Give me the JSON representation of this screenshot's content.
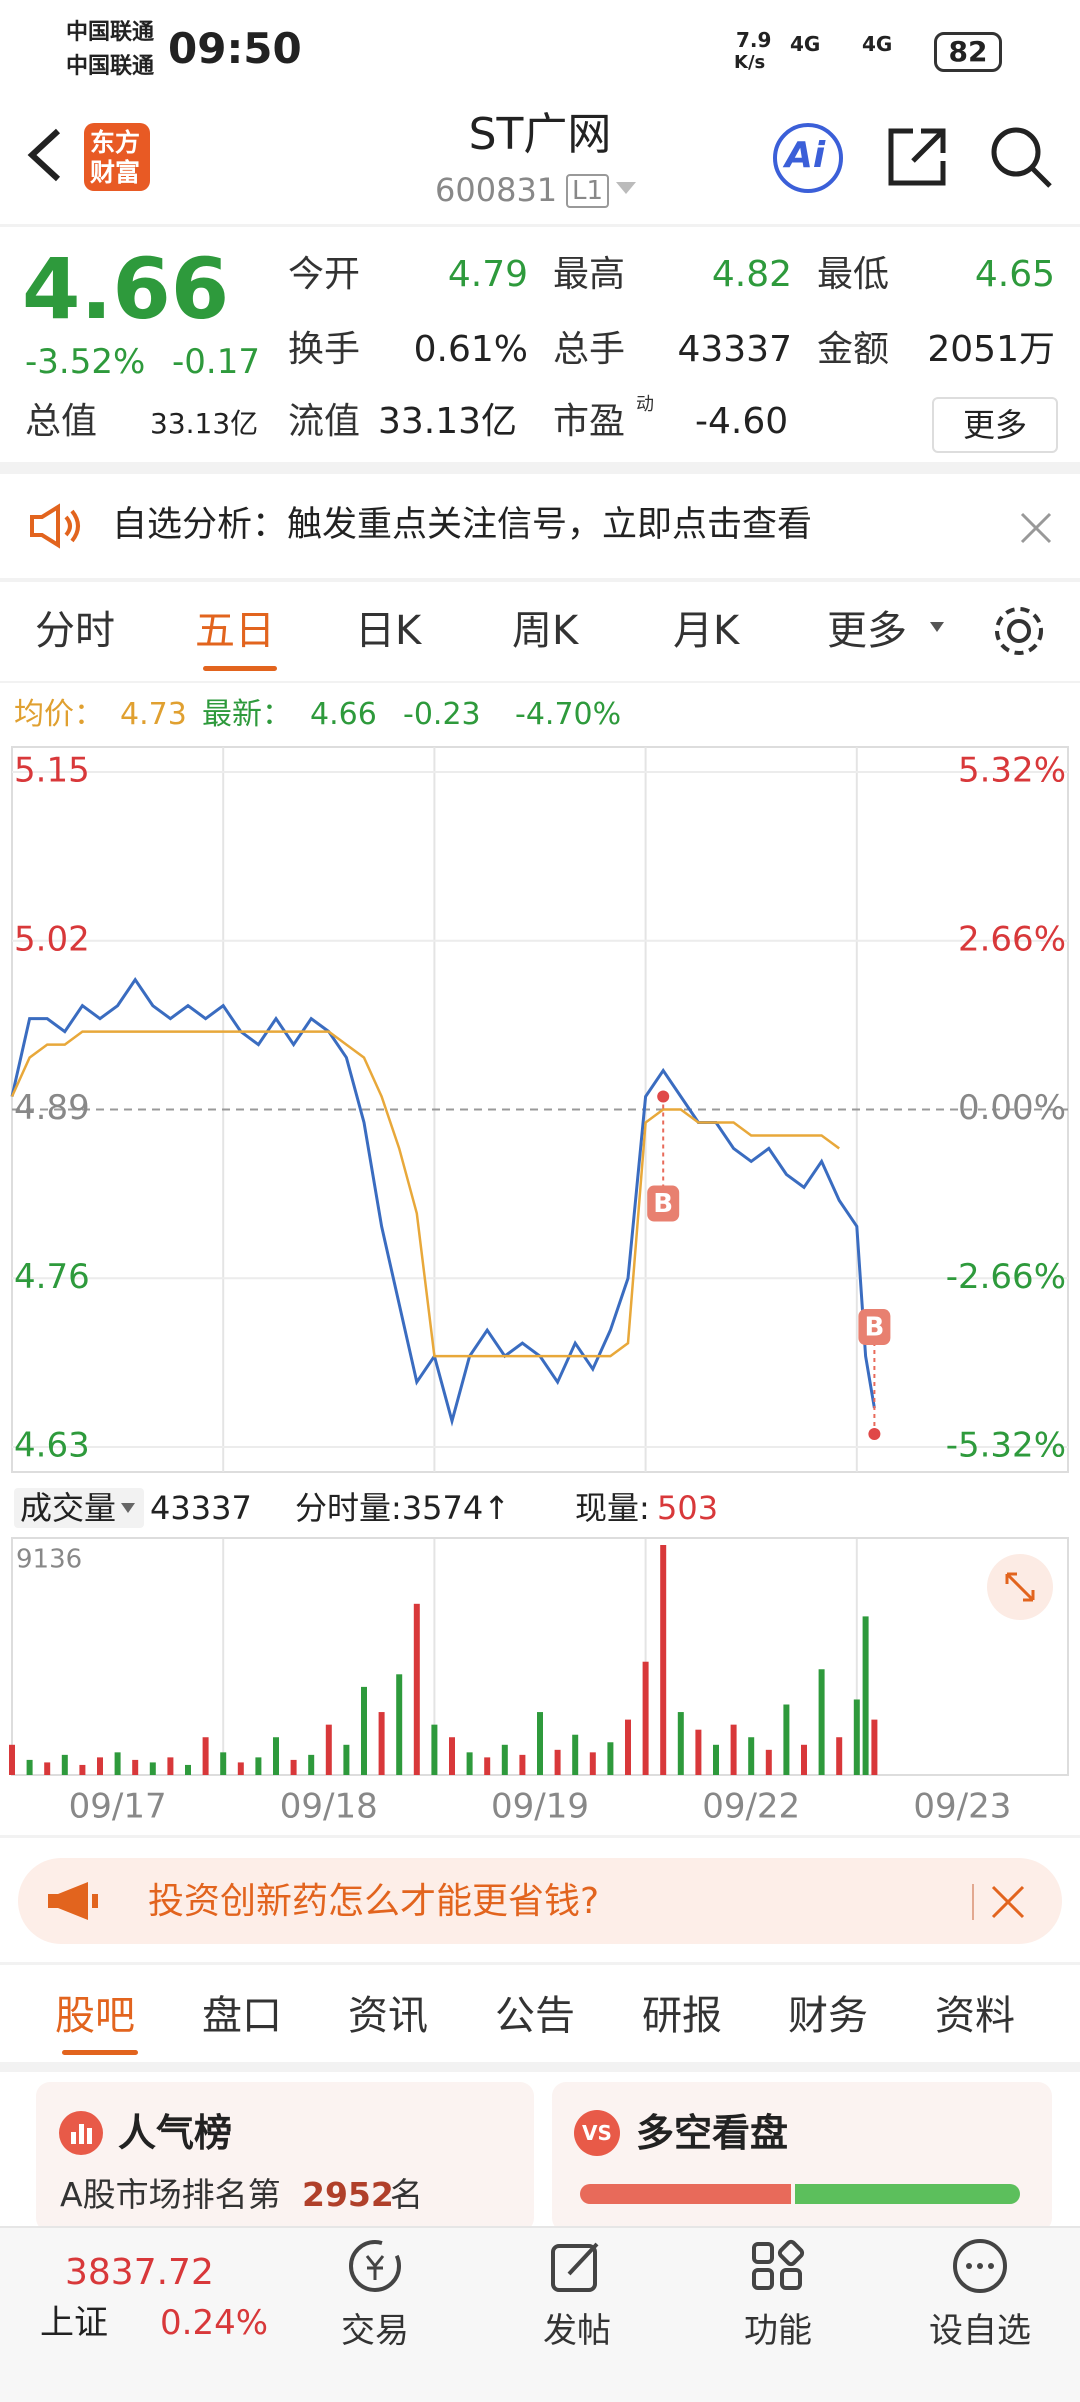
{
  "status": {
    "carrier1": "中国联通",
    "carrier2": "中国联通",
    "time": "09:50",
    "speed": "7.9",
    "speed_unit": "K/s",
    "net1": "4G",
    "net2": "4G",
    "battery": "82"
  },
  "header": {
    "logo1": "东方",
    "logo2": "财富",
    "title": "ST广网",
    "code": "600831",
    "level": "L1",
    "ai": "Ai"
  },
  "quote": {
    "price": "4.66",
    "change_pct": "-3.52%",
    "change": "-0.17",
    "rows": [
      [
        {
          "label": "今开",
          "value": "4.79"
        },
        {
          "label": "最高",
          "value": "4.82"
        },
        {
          "label": "最低",
          "value": "4.65"
        }
      ],
      [
        {
          "label": "换手",
          "value": "0.61%"
        },
        {
          "label": "总手",
          "value": "43337"
        },
        {
          "label": "金额",
          "value": "2051万"
        }
      ]
    ],
    "cap_label": "总值",
    "cap": "33.13亿",
    "float_label": "流值",
    "float": "33.13亿",
    "pe_label": "市盈",
    "pe_sup": "动",
    "pe": "-4.60",
    "more": "更多"
  },
  "notice": "自选分析：触发重点关注信号，立即点击查看",
  "tabs": [
    "分时",
    "五日",
    "日K",
    "周K",
    "月K",
    "更多"
  ],
  "info": {
    "avg_label": "均价：",
    "avg": "4.73",
    "last_label": "最新：",
    "last": "4.66",
    "change": "-0.23",
    "change_pct": "-4.70%"
  },
  "chart_data": {
    "type": "line",
    "x": [
      0,
      20,
      40,
      60,
      80,
      100,
      120,
      140,
      160,
      180,
      200,
      220,
      240,
      260,
      280,
      300,
      320,
      340,
      360,
      380,
      400,
      420,
      440,
      460,
      480,
      500,
      520,
      540,
      560,
      580,
      600,
      620,
      640,
      660,
      680,
      700,
      720,
      740,
      760,
      780,
      800,
      820,
      840,
      860,
      880,
      900,
      920,
      940,
      960,
      970,
      980
    ],
    "xlim": [
      0,
      1200
    ],
    "xgrid": [
      240,
      480,
      720,
      960
    ],
    "days": [
      "09/17",
      "09/18",
      "09/19",
      "09/22",
      "09/23"
    ],
    "series": [
      {
        "name": "最新",
        "color": "#3a6cc0",
        "values": [
          4.9,
          4.96,
          4.96,
          4.95,
          4.97,
          4.96,
          4.97,
          4.99,
          4.97,
          4.96,
          4.97,
          4.96,
          4.97,
          4.95,
          4.94,
          4.96,
          4.94,
          4.96,
          4.95,
          4.93,
          4.88,
          4.8,
          4.74,
          4.68,
          4.7,
          4.65,
          4.7,
          4.72,
          4.7,
          4.71,
          4.7,
          4.68,
          4.71,
          4.69,
          4.72,
          4.76,
          4.9,
          4.92,
          4.9,
          4.88,
          4.88,
          4.86,
          4.85,
          4.86,
          4.84,
          4.83,
          4.85,
          4.82,
          4.8,
          4.7,
          4.66
        ]
      },
      {
        "name": "均价",
        "color": "#e8a83a",
        "values": [
          4.9,
          4.93,
          4.94,
          4.94,
          4.95,
          4.95,
          4.95,
          4.95,
          4.95,
          4.95,
          4.95,
          4.95,
          4.95,
          4.95,
          4.95,
          4.95,
          4.95,
          4.95,
          4.95,
          4.94,
          4.93,
          4.9,
          4.86,
          4.81,
          4.7,
          4.7,
          4.7,
          4.7,
          4.7,
          4.7,
          4.7,
          4.7,
          4.7,
          4.7,
          4.7,
          4.71,
          4.88,
          4.89,
          4.89,
          4.88,
          4.88,
          4.88,
          4.87,
          4.87,
          4.87,
          4.87,
          4.87,
          4.86,
          null,
          null,
          null
        ]
      }
    ],
    "ylim": [
      4.63,
      5.15
    ],
    "yticks": [
      4.63,
      4.76,
      4.89,
      5.02,
      5.15
    ],
    "base": 4.89,
    "y2lim": [
      -5.32,
      5.32
    ],
    "y2ticks": [
      {
        "value": -5.32,
        "label": "-5.32%"
      },
      {
        "value": -2.66,
        "label": "-2.66%"
      },
      {
        "value": 0,
        "label": "0.00%"
      },
      {
        "value": 2.66,
        "label": "2.66%"
      },
      {
        "value": 5.32,
        "label": "5.32%"
      }
    ],
    "markers": [
      {
        "label": "B",
        "x": 740,
        "value": 4.9
      },
      {
        "label": "B",
        "x": 980,
        "value": 4.64
      }
    ]
  },
  "volume": {
    "label": "成交量",
    "total": "43337",
    "minute": "分时量:3574↑",
    "now_label": "现量:",
    "now": "503",
    "ylim": [
      0,
      9136
    ],
    "yticks": [
      9136
    ],
    "values": [
      1200,
      600,
      500,
      800,
      400,
      700,
      900,
      600,
      500,
      700,
      400,
      1500,
      900,
      500,
      700,
      1500,
      600,
      800,
      2000,
      1200,
      3500,
      2500,
      4000,
      6800,
      2000,
      1500,
      900,
      700,
      1200,
      800,
      2500,
      1000,
      1600,
      900,
      1300,
      2200,
      4500,
      9136,
      2500,
      1800,
      1200,
      2000,
      1500,
      1000,
      2800,
      1200,
      4200,
      1500,
      3000,
      6300,
      2200
    ],
    "colors": [
      "#d8383a",
      "#2e9a3c",
      "#d8383a",
      "#2e9a3c",
      "#d8383a",
      "#d8383a",
      "#2e9a3c",
      "#d8383a",
      "#2e9a3c",
      "#d8383a",
      "#2e9a3c",
      "#d8383a",
      "#2e9a3c",
      "#d8383a",
      "#2e9a3c",
      "#2e9a3c",
      "#d8383a",
      "#2e9a3c",
      "#d8383a",
      "#2e9a3c",
      "#2e9a3c",
      "#d8383a",
      "#2e9a3c",
      "#d8383a",
      "#2e9a3c",
      "#d8383a",
      "#2e9a3c",
      "#d8383a",
      "#2e9a3c",
      "#d8383a",
      "#2e9a3c",
      "#d8383a",
      "#2e9a3c",
      "#d8383a",
      "#2e9a3c",
      "#d8383a",
      "#d8383a",
      "#d8383a",
      "#2e9a3c",
      "#d8383a",
      "#2e9a3c",
      "#d8383a",
      "#2e9a3c",
      "#d8383a",
      "#2e9a3c",
      "#d8383a",
      "#2e9a3c",
      "#d8383a",
      "#2e9a3c",
      "#2e9a3c",
      "#d8383a"
    ]
  },
  "ad": "投资创新药怎么才能更省钱?",
  "tabs2": [
    "股吧",
    "盘口",
    "资讯",
    "公告",
    "研报",
    "财务",
    "资料"
  ],
  "cards": {
    "rank_title": "人气榜",
    "rank_pre": "A股市场排名第",
    "rank": "2952",
    "rank_post": "名",
    "vs_icon": "VS",
    "bull_title": "多空看盘",
    "bull_share": 48
  },
  "bottom": {
    "index": "3837.72",
    "index_name": "上证",
    "index_pct": "0.24%",
    "nav": [
      "交易",
      "发帖",
      "功能",
      "设自选"
    ]
  }
}
